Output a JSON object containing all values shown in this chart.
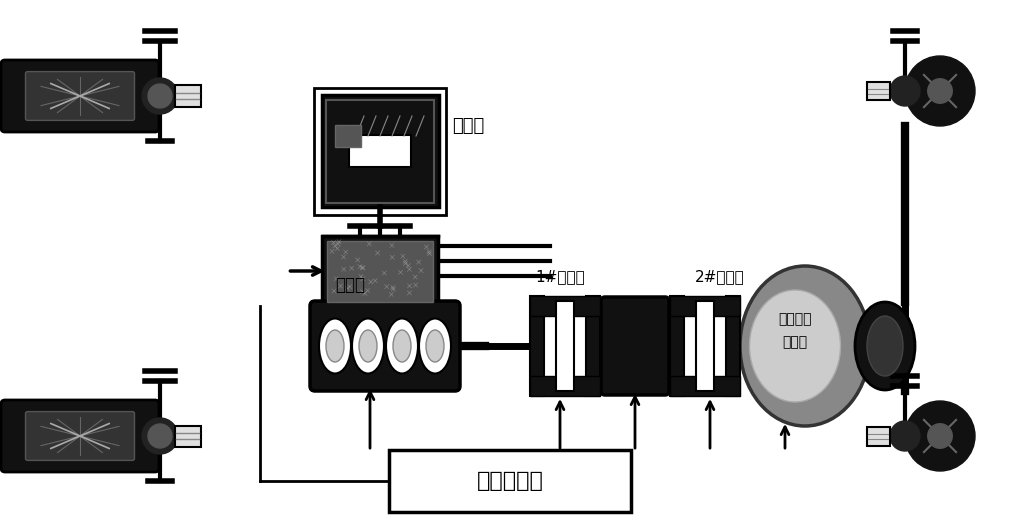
{
  "bg_color": "#ffffff",
  "labels": {
    "battery": "电池组",
    "engine": "发动机",
    "clutch1": "1#离合器",
    "clutch2": "2#离合器",
    "transmission": "机械自动\n变速器",
    "controller": "整车控制器"
  },
  "fig_width": 10.22,
  "fig_height": 5.31,
  "dpi": 100
}
